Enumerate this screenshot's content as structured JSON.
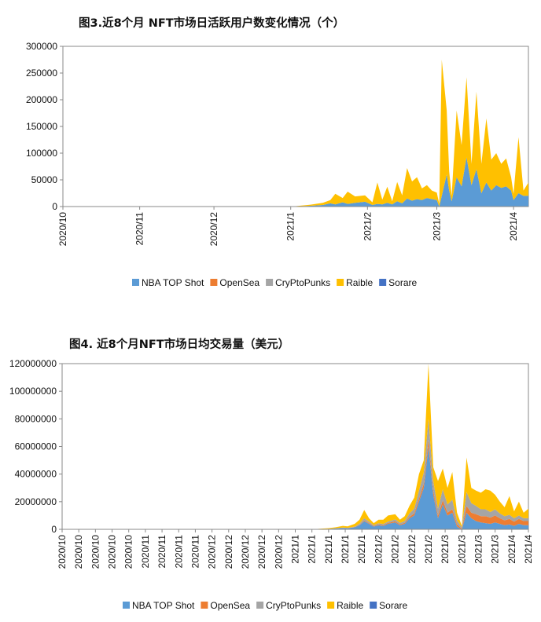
{
  "chart_data": [
    {
      "type": "area",
      "stacked": true,
      "title": "图3.近8个月 NFT市场日活跃用户数变化情况（个）",
      "ylim": [
        0,
        300000
      ],
      "y_ticks": [
        "300000",
        "250000",
        "200000",
        "150000",
        "100000",
        "50000",
        "0"
      ],
      "y_tick_values": [
        300000,
        250000,
        200000,
        150000,
        100000,
        50000,
        0
      ],
      "x_ticks": [
        "2020/10",
        "2020/11",
        "2020/12",
        "2021/1",
        "2021/2",
        "2021/3",
        "2021/4"
      ],
      "x_tick_days": [
        0,
        31,
        61,
        92,
        123,
        151,
        182
      ],
      "x_domain_days": [
        0,
        188
      ],
      "legend_position": "bottom",
      "series": [
        {
          "name": "NBA TOP Shot",
          "color": "#5B9BD5",
          "x": [
            0,
            88,
            94,
            100,
            105,
            108,
            110,
            113,
            115,
            118,
            122,
            125,
            127,
            129,
            131,
            133,
            135,
            137,
            139,
            141,
            143,
            145,
            147,
            149,
            151,
            152,
            153,
            155,
            156,
            157,
            159,
            161,
            163,
            165,
            167,
            169,
            171,
            173,
            175,
            177,
            179,
            181,
            182,
            184,
            186,
            188
          ],
          "y": [
            0,
            0,
            300,
            1500,
            3000,
            6000,
            4000,
            8000,
            5000,
            7000,
            9000,
            3000,
            5000,
            4000,
            7000,
            4000,
            10000,
            6000,
            15000,
            11000,
            14000,
            12000,
            16000,
            14000,
            12000,
            0,
            20000,
            60000,
            30000,
            10000,
            55000,
            38000,
            92000,
            40000,
            70000,
            25000,
            45000,
            30000,
            40000,
            35000,
            38000,
            30000,
            12000,
            25000,
            20000,
            20000
          ]
        },
        {
          "name": "OpenSea",
          "color": "#ED7D31",
          "x": [
            0,
            188
          ],
          "y": [
            0,
            0
          ]
        },
        {
          "name": "CryPtoPunks",
          "color": "#A5A5A5",
          "x": [
            0,
            188
          ],
          "y": [
            0,
            0
          ]
        },
        {
          "name": "Raible",
          "color": "#FFC000",
          "x": [
            0,
            88,
            94,
            100,
            105,
            108,
            110,
            113,
            115,
            118,
            122,
            125,
            127,
            129,
            131,
            133,
            135,
            137,
            139,
            141,
            143,
            145,
            147,
            149,
            151,
            152,
            153,
            155,
            156,
            157,
            159,
            161,
            163,
            165,
            167,
            169,
            171,
            173,
            175,
            177,
            179,
            181,
            182,
            184,
            186,
            188
          ],
          "y": [
            0,
            0,
            400,
            2000,
            4000,
            6000,
            20000,
            8000,
            23000,
            12000,
            12000,
            5000,
            40000,
            9000,
            30000,
            6000,
            36000,
            15000,
            57000,
            36000,
            41000,
            22000,
            24000,
            16000,
            14000,
            5000,
            255000,
            120000,
            36000,
            10000,
            125000,
            77000,
            150000,
            40000,
            145000,
            55000,
            120000,
            58000,
            60000,
            45000,
            52000,
            25000,
            12000,
            105000,
            10000,
            25000
          ]
        },
        {
          "name": "Sorare",
          "color": "#4472C4",
          "x": [
            0,
            188
          ],
          "y": [
            0,
            0
          ]
        }
      ]
    },
    {
      "type": "area",
      "stacked": true,
      "title": "图4. 近8个月NFT市场日均交易量（美元）",
      "ylim": [
        0,
        120000000
      ],
      "y_ticks": [
        "120000000",
        "100000000",
        "80000000",
        "60000000",
        "40000000",
        "20000000",
        "0"
      ],
      "y_tick_values": [
        120000000,
        100000000,
        80000000,
        60000000,
        40000000,
        20000000,
        0
      ],
      "x_ticks": [
        "2020/10",
        "2020/10",
        "2020/10",
        "2020/10",
        "2020/10",
        "2020/11",
        "2020/11",
        "2020/11",
        "2020/11",
        "2020/12",
        "2020/12",
        "2020/12",
        "2020/12",
        "2020/12",
        "2021/1",
        "2021/1",
        "2021/1",
        "2021/1",
        "2021/1",
        "2021/2",
        "2021/2",
        "2021/2",
        "2021/2",
        "2021/3",
        "2021/3",
        "2021/3",
        "2021/3",
        "2021/4",
        "2021/4"
      ],
      "x_tick_days": [
        0,
        7,
        14,
        21,
        28,
        35,
        42,
        49,
        56,
        63,
        70,
        77,
        84,
        91,
        98,
        105,
        112,
        119,
        126,
        133,
        140,
        147,
        154,
        161,
        168,
        175,
        182,
        189,
        196
      ],
      "x_domain_days": [
        0,
        196
      ],
      "legend_position": "bottom",
      "series": [
        {
          "name": "NBA TOP Shot",
          "color": "#5B9BD5",
          "x": [
            0,
            105,
            112,
            115,
            118,
            120,
            123,
            125,
            127,
            129,
            131,
            133,
            135,
            137,
            140,
            142,
            144,
            146,
            148,
            150,
            152,
            154,
            156,
            158,
            160,
            162,
            164,
            166,
            168,
            170,
            172,
            174,
            176,
            178,
            180,
            182,
            184,
            186,
            188,
            190,
            192,
            194,
            196
          ],
          "y": [
            0,
            0,
            300000,
            600000,
            1000000,
            800000,
            1500000,
            3000000,
            6000000,
            4000000,
            2000000,
            3000000,
            2500000,
            4000000,
            5000000,
            3000000,
            4000000,
            8000000,
            10000000,
            20000000,
            30000000,
            60000000,
            25000000,
            8000000,
            18000000,
            10000000,
            12000000,
            2000000,
            0,
            12000000,
            8000000,
            6000000,
            5000000,
            4500000,
            4000000,
            5000000,
            4000000,
            3000000,
            3500000,
            2500000,
            4000000,
            3000000,
            3000000
          ]
        },
        {
          "name": "OpenSea",
          "color": "#ED7D31",
          "x": [
            0,
            105,
            112,
            115,
            118,
            120,
            123,
            125,
            127,
            129,
            131,
            133,
            135,
            137,
            140,
            142,
            144,
            146,
            148,
            150,
            152,
            154,
            156,
            158,
            160,
            162,
            164,
            166,
            168,
            170,
            172,
            174,
            176,
            178,
            180,
            182,
            184,
            186,
            188,
            190,
            192,
            194,
            196
          ],
          "y": [
            0,
            0,
            50000,
            50000,
            100000,
            100000,
            200000,
            300000,
            500000,
            500000,
            400000,
            500000,
            500000,
            600000,
            800000,
            600000,
            700000,
            1000000,
            1500000,
            2000000,
            3000000,
            5000000,
            3000000,
            2000000,
            3000000,
            2000000,
            2500000,
            1500000,
            500000,
            5000000,
            4000000,
            5000000,
            4500000,
            5000000,
            4500000,
            5000000,
            4000000,
            3500000,
            4000000,
            3000000,
            3500000,
            3000000,
            3000000
          ]
        },
        {
          "name": "CryPtoPunks",
          "color": "#A5A5A5",
          "x": [
            0,
            105,
            112,
            115,
            118,
            120,
            123,
            125,
            127,
            129,
            131,
            133,
            135,
            137,
            140,
            142,
            144,
            146,
            148,
            150,
            152,
            154,
            156,
            158,
            160,
            162,
            164,
            166,
            168,
            170,
            172,
            174,
            176,
            178,
            180,
            182,
            184,
            186,
            188,
            190,
            192,
            194,
            196
          ],
          "y": [
            0,
            0,
            100000,
            150000,
            200000,
            200000,
            300000,
            800000,
            1500000,
            1000000,
            600000,
            900000,
            800000,
            1000000,
            1500000,
            1000000,
            1300000,
            2500000,
            3500000,
            6000000,
            8000000,
            15000000,
            7000000,
            5000000,
            8000000,
            6000000,
            7000000,
            3000000,
            1000000,
            10000000,
            7000000,
            6000000,
            5000000,
            5000000,
            4000000,
            4500000,
            3500000,
            3000000,
            3000000,
            2500000,
            2500000,
            2000000,
            2000000
          ]
        },
        {
          "name": "Raible",
          "color": "#FFC000",
          "x": [
            0,
            105,
            112,
            115,
            118,
            120,
            123,
            125,
            127,
            129,
            131,
            133,
            135,
            137,
            140,
            142,
            144,
            146,
            148,
            150,
            152,
            154,
            156,
            158,
            160,
            162,
            164,
            166,
            168,
            170,
            172,
            174,
            176,
            178,
            180,
            182,
            184,
            186,
            188,
            190,
            192,
            194,
            196
          ],
          "y": [
            0,
            0,
            400000,
            700000,
            1200000,
            1000000,
            2000000,
            2900000,
            6000000,
            2500000,
            1500000,
            2600000,
            3200000,
            4400000,
            3700000,
            2400000,
            3500000,
            5500000,
            8000000,
            12000000,
            9000000,
            40000000,
            10000000,
            20000000,
            15000000,
            12000000,
            20000000,
            5500000,
            1000000,
            25000000,
            11000000,
            11000000,
            12000000,
            14500000,
            15500000,
            10500000,
            8500000,
            6500000,
            13500000,
            5000000,
            10000000,
            4000000,
            7000000
          ]
        },
        {
          "name": "Sorare",
          "color": "#4472C4",
          "x": [
            0,
            196
          ],
          "y": [
            0,
            0
          ]
        }
      ]
    }
  ]
}
